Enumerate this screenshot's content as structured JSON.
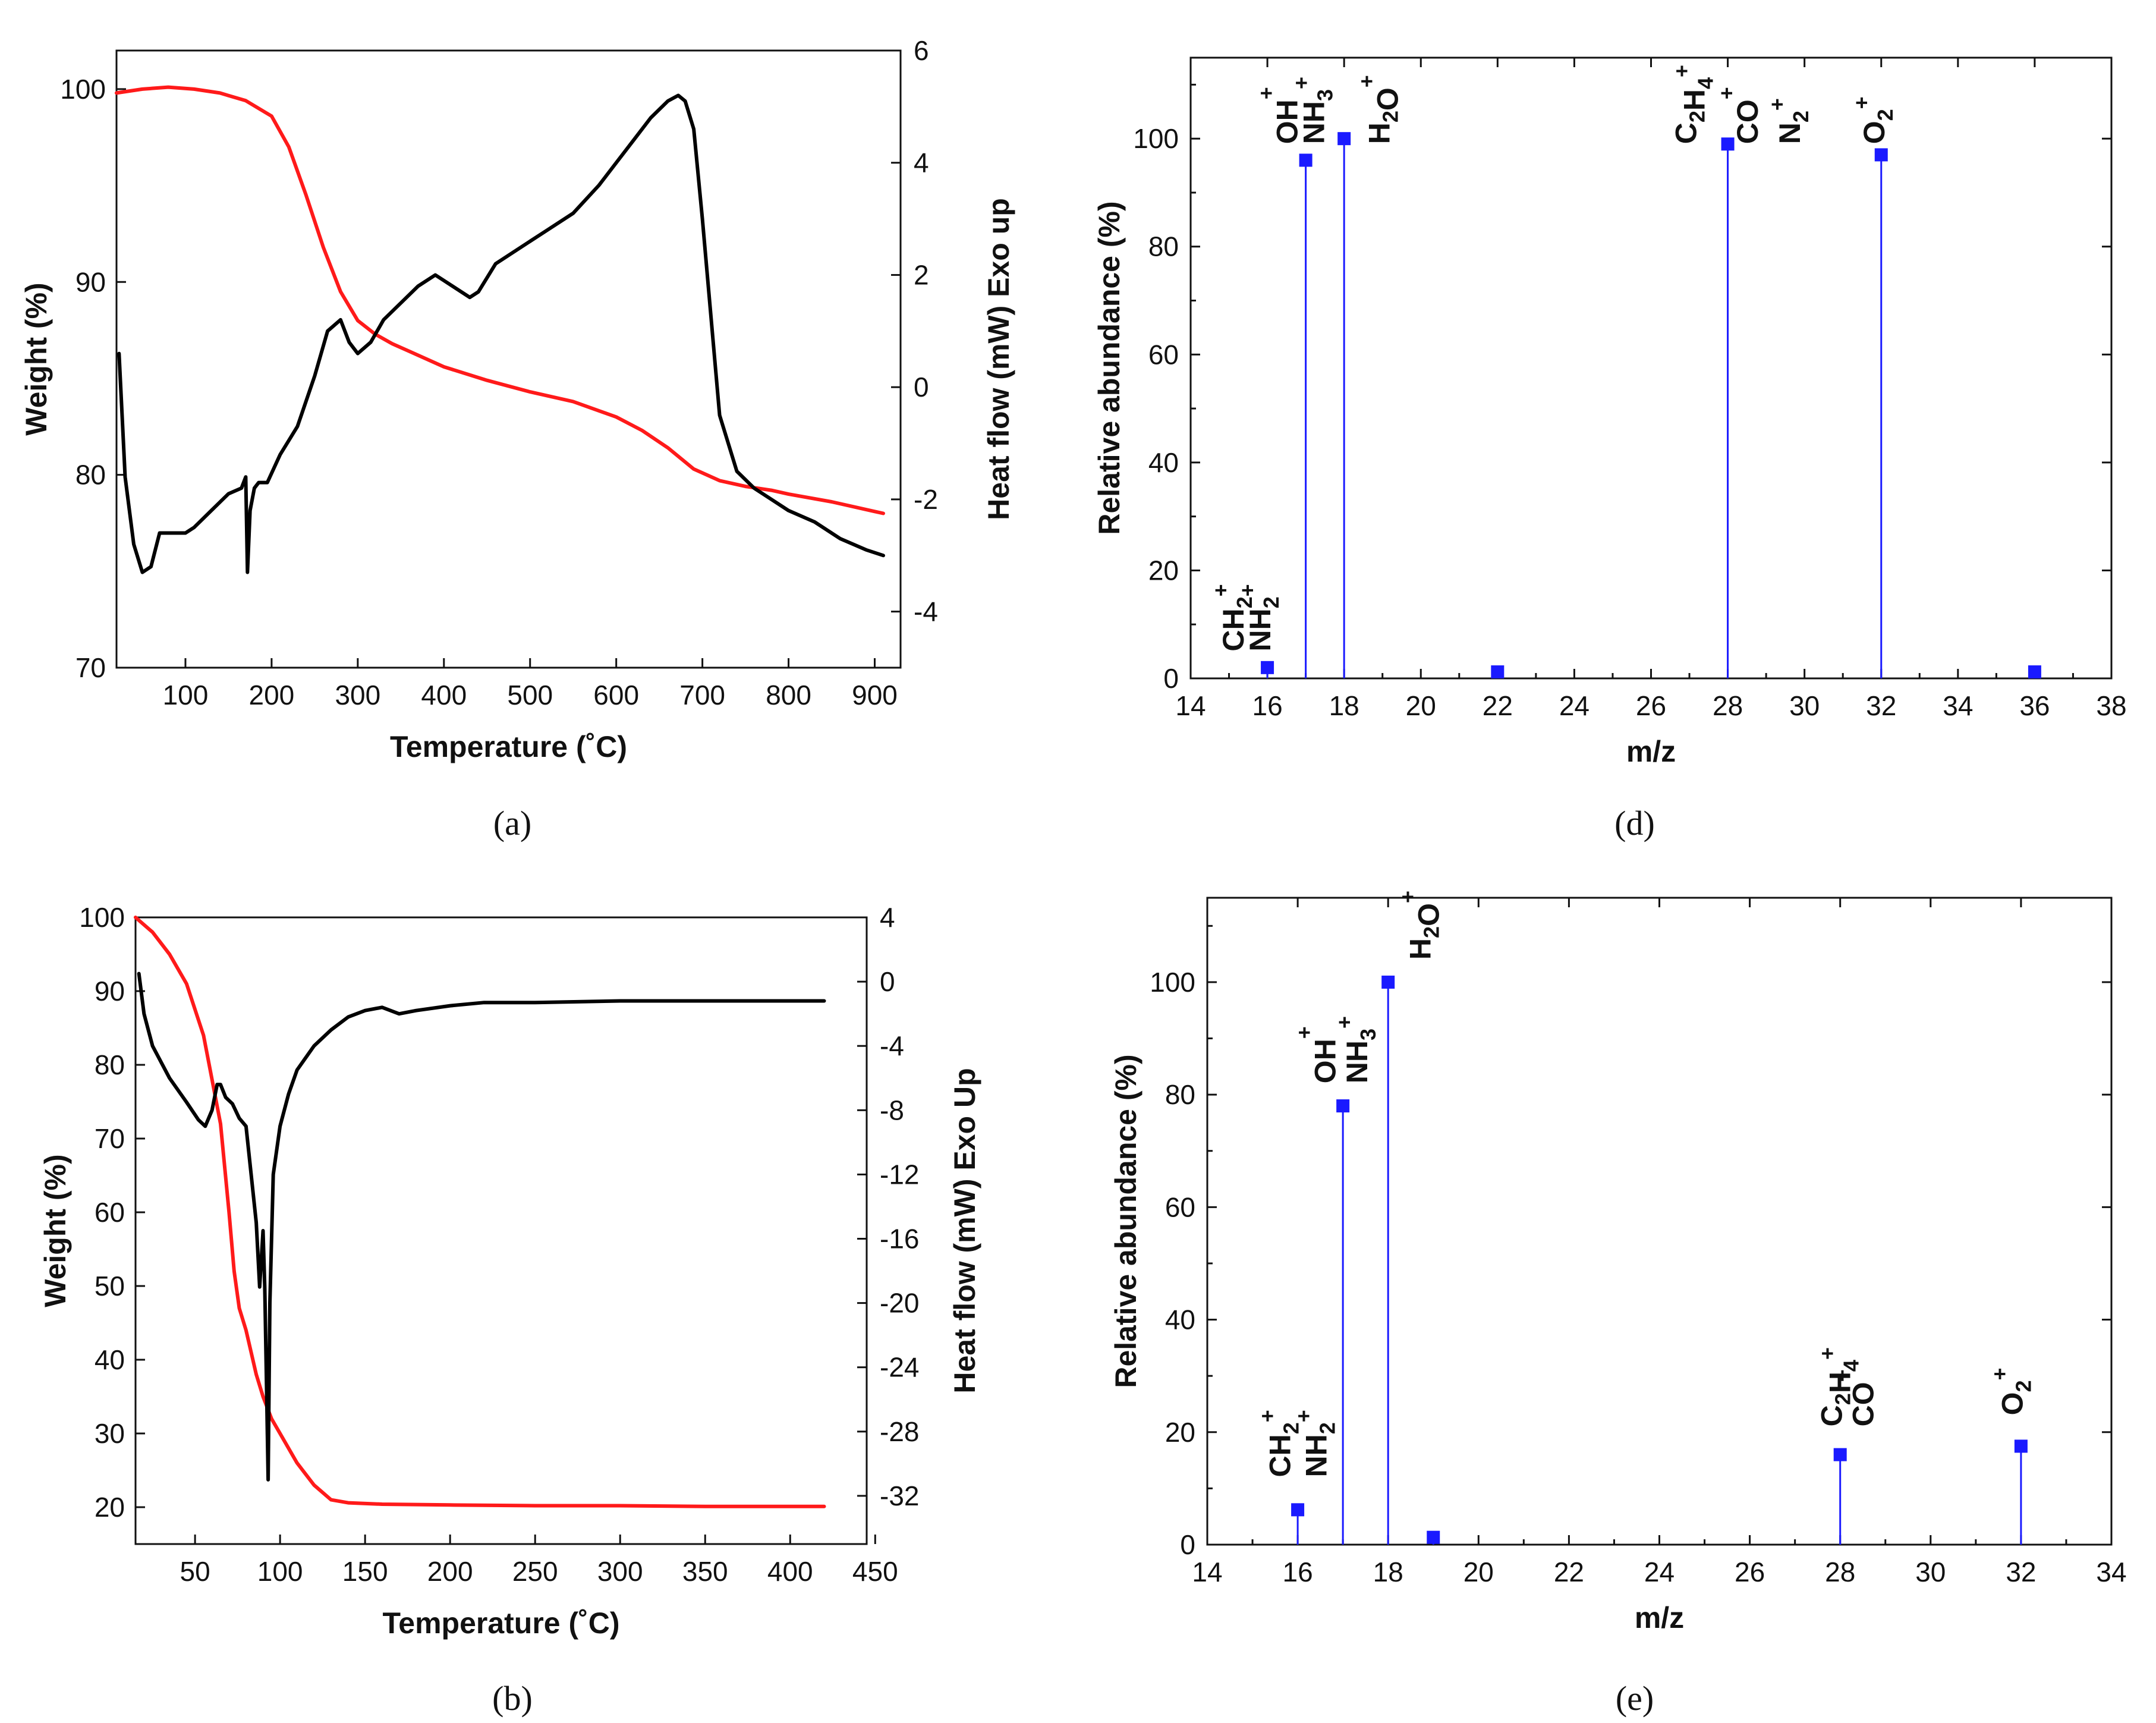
{
  "captions": {
    "a": "(a)",
    "b": "(b)",
    "d": "(d)",
    "e": "(e)"
  },
  "colors": {
    "weight": "#ff1a1a",
    "heatflow": "#000000",
    "stem": "#1a1aff"
  },
  "chart_data": [
    {
      "id": "a",
      "type": "line",
      "title": "",
      "xlabel": "Temperature (˚C)",
      "ylabel": "Weight (%)",
      "y2label": "Heat flow (mW) Exo up",
      "xlim": [
        20,
        930
      ],
      "ylim": [
        70,
        102
      ],
      "y2lim": [
        -5,
        6
      ],
      "xticks": [
        100,
        200,
        300,
        400,
        500,
        600,
        700,
        800,
        900
      ],
      "yticks": [
        70,
        80,
        90,
        100
      ],
      "y2ticks": [
        -4,
        -2,
        0,
        2,
        4,
        6
      ],
      "series": [
        {
          "name": "Weight",
          "axis": "y",
          "color": "#ff1a1a",
          "x": [
            20,
            50,
            80,
            110,
            140,
            170,
            200,
            220,
            240,
            260,
            280,
            300,
            320,
            340,
            360,
            400,
            450,
            500,
            550,
            600,
            630,
            660,
            690,
            720,
            750,
            780,
            800,
            850,
            900,
            910
          ],
          "y": [
            99.8,
            100.0,
            100.1,
            100.0,
            99.8,
            99.4,
            98.6,
            97.0,
            94.5,
            91.8,
            89.5,
            88.0,
            87.3,
            86.8,
            86.4,
            85.6,
            84.9,
            84.3,
            83.8,
            83.0,
            82.3,
            81.4,
            80.3,
            79.7,
            79.4,
            79.2,
            79.0,
            78.6,
            78.1,
            78.0
          ]
        },
        {
          "name": "Heat flow",
          "axis": "y2",
          "color": "#000000",
          "x": [
            23,
            30,
            40,
            50,
            60,
            70,
            80,
            90,
            100,
            110,
            130,
            150,
            165,
            170,
            172,
            175,
            180,
            185,
            195,
            210,
            230,
            250,
            265,
            280,
            290,
            300,
            315,
            330,
            350,
            370,
            390,
            400,
            410,
            430,
            440,
            460,
            480,
            500,
            520,
            550,
            580,
            600,
            620,
            640,
            660,
            672,
            680,
            690,
            700,
            720,
            740,
            760,
            780,
            800,
            830,
            860,
            890,
            910
          ],
          "y": [
            0.6,
            -1.6,
            -2.8,
            -3.3,
            -3.2,
            -2.6,
            -2.6,
            -2.6,
            -2.6,
            -2.5,
            -2.2,
            -1.9,
            -1.8,
            -1.6,
            -3.3,
            -2.2,
            -1.8,
            -1.7,
            -1.7,
            -1.2,
            -0.7,
            0.2,
            1.0,
            1.2,
            0.8,
            0.6,
            0.8,
            1.2,
            1.5,
            1.8,
            2.0,
            1.9,
            1.8,
            1.6,
            1.7,
            2.2,
            2.4,
            2.6,
            2.8,
            3.1,
            3.6,
            4.0,
            4.4,
            4.8,
            5.1,
            5.2,
            5.1,
            4.6,
            3.0,
            -0.5,
            -1.5,
            -1.8,
            -2.0,
            -2.2,
            -2.4,
            -2.7,
            -2.9,
            -3.0
          ]
        }
      ]
    },
    {
      "id": "b",
      "type": "line",
      "title": "",
      "xlabel": "Temperature (˚C)",
      "ylabel": "Weight (%)",
      "y2label": "Heat flow (mW) Exo Up",
      "xlim": [
        15,
        445
      ],
      "ylim": [
        15,
        100
      ],
      "y2lim": [
        -35,
        4
      ],
      "xticks": [
        50,
        100,
        150,
        200,
        250,
        300,
        350,
        400,
        450
      ],
      "yticks": [
        20,
        30,
        40,
        50,
        60,
        70,
        80,
        90,
        100
      ],
      "y2ticks": [
        -32,
        -28,
        -24,
        -20,
        -16,
        -12,
        -8,
        -4,
        0,
        4
      ],
      "series": [
        {
          "name": "Weight",
          "axis": "y",
          "color": "#ff1a1a",
          "x": [
            15,
            25,
            35,
            45,
            55,
            60,
            65,
            70,
            73,
            76,
            80,
            83,
            86,
            90,
            95,
            100,
            110,
            120,
            130,
            140,
            160,
            200,
            250,
            300,
            350,
            400,
            420
          ],
          "y": [
            100,
            98,
            95,
            91,
            84,
            78,
            72,
            60,
            52,
            47,
            44,
            41,
            38,
            35,
            32,
            30,
            26,
            23,
            21,
            20.6,
            20.4,
            20.3,
            20.2,
            20.2,
            20.1,
            20.1,
            20.1
          ]
        },
        {
          "name": "Heat flow",
          "axis": "y2",
          "color": "#000000",
          "x": [
            17,
            20,
            25,
            35,
            45,
            52,
            56,
            60,
            63,
            65,
            68,
            72,
            76,
            80,
            83,
            86,
            88,
            90,
            91,
            92,
            93,
            94,
            96,
            100,
            105,
            110,
            120,
            130,
            140,
            150,
            160,
            170,
            180,
            200,
            220,
            250,
            300,
            350,
            400,
            420
          ],
          "y": [
            0.5,
            -2.0,
            -4.0,
            -6.0,
            -7.5,
            -8.6,
            -9.0,
            -8.0,
            -6.4,
            -6.4,
            -7.2,
            -7.6,
            -8.5,
            -9.0,
            -12.0,
            -15.0,
            -19.0,
            -15.5,
            -19.0,
            -25.0,
            -31.0,
            -20.0,
            -12.0,
            -9.0,
            -7.0,
            -5.5,
            -4.0,
            -3.0,
            -2.2,
            -1.8,
            -1.6,
            -2.0,
            -1.8,
            -1.5,
            -1.3,
            -1.3,
            -1.2,
            -1.2,
            -1.2,
            -1.2
          ]
        }
      ]
    },
    {
      "id": "d",
      "type": "stem",
      "title": "",
      "xlabel": "m/z",
      "ylabel": "Relative abundance (%)",
      "xlim": [
        14,
        38
      ],
      "ylim": [
        0,
        115
      ],
      "xticks": [
        14,
        16,
        18,
        20,
        22,
        24,
        26,
        28,
        30,
        32,
        34,
        36,
        38
      ],
      "yticks": [
        0,
        20,
        40,
        60,
        80,
        100
      ],
      "points": [
        {
          "x": 16,
          "y": 2.0
        },
        {
          "x": 17,
          "y": 96
        },
        {
          "x": 18,
          "y": 100
        },
        {
          "x": 22,
          "y": 1.2
        },
        {
          "x": 28,
          "y": 99
        },
        {
          "x": 32,
          "y": 97
        },
        {
          "x": 36,
          "y": 1.2
        }
      ],
      "annotations": [
        {
          "label": "CH2+",
          "x": 15.1,
          "y": 5
        },
        {
          "label": "NH2+",
          "x": 15.8,
          "y": 5
        },
        {
          "label": "OH+",
          "x": 16.5,
          "y": 99
        },
        {
          "label": "NH3+",
          "x": 17.2,
          "y": 99
        },
        {
          "label": "H2O+",
          "x": 18.9,
          "y": 99
        },
        {
          "label": "C2H4+",
          "x": 26.9,
          "y": 99
        },
        {
          "label": "CO+",
          "x": 28.5,
          "y": 99
        },
        {
          "label": "N2+",
          "x": 29.6,
          "y": 99
        },
        {
          "label": "O2+",
          "x": 31.8,
          "y": 99
        }
      ]
    },
    {
      "id": "e",
      "type": "stem",
      "title": "",
      "xlabel": "m/z",
      "ylabel": "Relative abundance (%)",
      "xlim": [
        14,
        34
      ],
      "ylim": [
        0,
        115
      ],
      "xticks": [
        14,
        16,
        18,
        20,
        22,
        24,
        26,
        28,
        30,
        32,
        34
      ],
      "yticks": [
        0,
        20,
        40,
        60,
        80,
        100
      ],
      "points": [
        {
          "x": 16,
          "y": 6.2
        },
        {
          "x": 17,
          "y": 78
        },
        {
          "x": 18,
          "y": 100
        },
        {
          "x": 19,
          "y": 1.3
        },
        {
          "x": 28,
          "y": 16
        },
        {
          "x": 32,
          "y": 17.5
        }
      ],
      "annotations": [
        {
          "label": "CH2+",
          "x": 15.6,
          "y": 12
        },
        {
          "label": "NH2+",
          "x": 16.4,
          "y": 12
        },
        {
          "label": "OH+",
          "x": 16.6,
          "y": 82
        },
        {
          "label": "NH3+",
          "x": 17.3,
          "y": 82
        },
        {
          "label": "H2O+",
          "x": 18.7,
          "y": 104
        },
        {
          "label": "C2H4+",
          "x": 27.8,
          "y": 21
        },
        {
          "label": "CO+",
          "x": 28.5,
          "y": 21
        },
        {
          "label": "O2+",
          "x": 31.8,
          "y": 23
        }
      ]
    }
  ]
}
